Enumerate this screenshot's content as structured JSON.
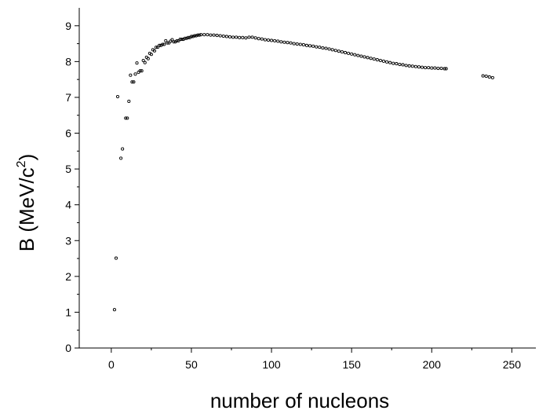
{
  "chart_data": {
    "type": "scatter",
    "title": "",
    "xlabel": "number of nucleons",
    "ylabel": "B (MeV/c",
    "ylabel_superscript": "2",
    "ylabel_suffix": ")",
    "xlim": [
      -20,
      265
    ],
    "ylim": [
      0,
      9.5
    ],
    "x_ticks": [
      0,
      50,
      100,
      150,
      200,
      250
    ],
    "x_tick_labels": [
      "0",
      "50",
      "100",
      "150",
      "200",
      "250"
    ],
    "y_ticks": [
      0,
      1,
      2,
      3,
      4,
      5,
      6,
      7,
      8,
      9
    ],
    "y_tick_labels": [
      "0",
      "1",
      "2",
      "3",
      "4",
      "5",
      "6",
      "7",
      "8",
      "9"
    ],
    "grid": false,
    "marker": "open-circle",
    "color": "#000000",
    "series": [
      {
        "x": [
          2,
          3,
          4,
          6,
          7,
          9,
          10,
          11,
          12,
          13,
          14,
          15,
          16,
          17,
          18,
          19,
          20,
          21,
          22,
          23,
          24,
          25,
          26,
          27,
          28,
          29,
          30,
          31,
          32,
          33,
          34,
          35,
          36,
          37,
          38,
          39,
          40,
          41,
          42,
          43,
          44,
          45,
          46,
          47,
          48,
          49,
          50,
          51,
          52,
          53,
          54,
          55,
          56,
          58,
          60,
          62,
          64,
          66,
          68,
          70,
          72,
          74,
          76,
          78,
          80,
          82,
          84,
          86,
          88,
          90,
          92,
          94,
          96,
          98,
          100,
          102,
          104,
          106,
          108,
          110,
          112,
          114,
          116,
          118,
          120,
          122,
          124,
          126,
          128,
          130,
          132,
          134,
          136,
          138,
          140,
          142,
          144,
          146,
          148,
          150,
          152,
          154,
          156,
          158,
          160,
          162,
          164,
          166,
          168,
          170,
          172,
          174,
          176,
          178,
          180,
          182,
          184,
          186,
          188,
          190,
          192,
          194,
          196,
          198,
          200,
          202,
          204,
          206,
          208,
          209,
          232,
          234,
          236,
          238
        ],
        "y": [
          1.07,
          2.51,
          7.02,
          5.3,
          5.56,
          6.42,
          6.42,
          6.89,
          7.62,
          7.43,
          7.43,
          7.65,
          7.96,
          7.7,
          7.74,
          7.74,
          8.03,
          7.97,
          8.12,
          8.08,
          8.23,
          8.2,
          8.33,
          8.3,
          8.4,
          8.4,
          8.45,
          8.45,
          8.48,
          8.48,
          8.58,
          8.52,
          8.52,
          8.57,
          8.61,
          8.55,
          8.55,
          8.58,
          8.58,
          8.62,
          8.62,
          8.62,
          8.65,
          8.65,
          8.67,
          8.67,
          8.7,
          8.7,
          8.72,
          8.72,
          8.74,
          8.74,
          8.75,
          8.75,
          8.75,
          8.74,
          8.74,
          8.73,
          8.72,
          8.71,
          8.7,
          8.69,
          8.68,
          8.68,
          8.67,
          8.67,
          8.66,
          8.68,
          8.68,
          8.66,
          8.64,
          8.63,
          8.61,
          8.6,
          8.59,
          8.58,
          8.57,
          8.55,
          8.54,
          8.53,
          8.52,
          8.5,
          8.49,
          8.48,
          8.47,
          8.45,
          8.44,
          8.43,
          8.41,
          8.4,
          8.38,
          8.37,
          8.35,
          8.33,
          8.31,
          8.29,
          8.27,
          8.25,
          8.23,
          8.21,
          8.19,
          8.17,
          8.15,
          8.13,
          8.11,
          8.09,
          8.07,
          8.05,
          8.03,
          8.01,
          7.99,
          7.97,
          7.95,
          7.94,
          7.92,
          7.91,
          7.89,
          7.88,
          7.87,
          7.86,
          7.85,
          7.84,
          7.83,
          7.83,
          7.82,
          7.82,
          7.81,
          7.81,
          7.8,
          7.8,
          7.6,
          7.59,
          7.57,
          7.55
        ]
      }
    ]
  }
}
